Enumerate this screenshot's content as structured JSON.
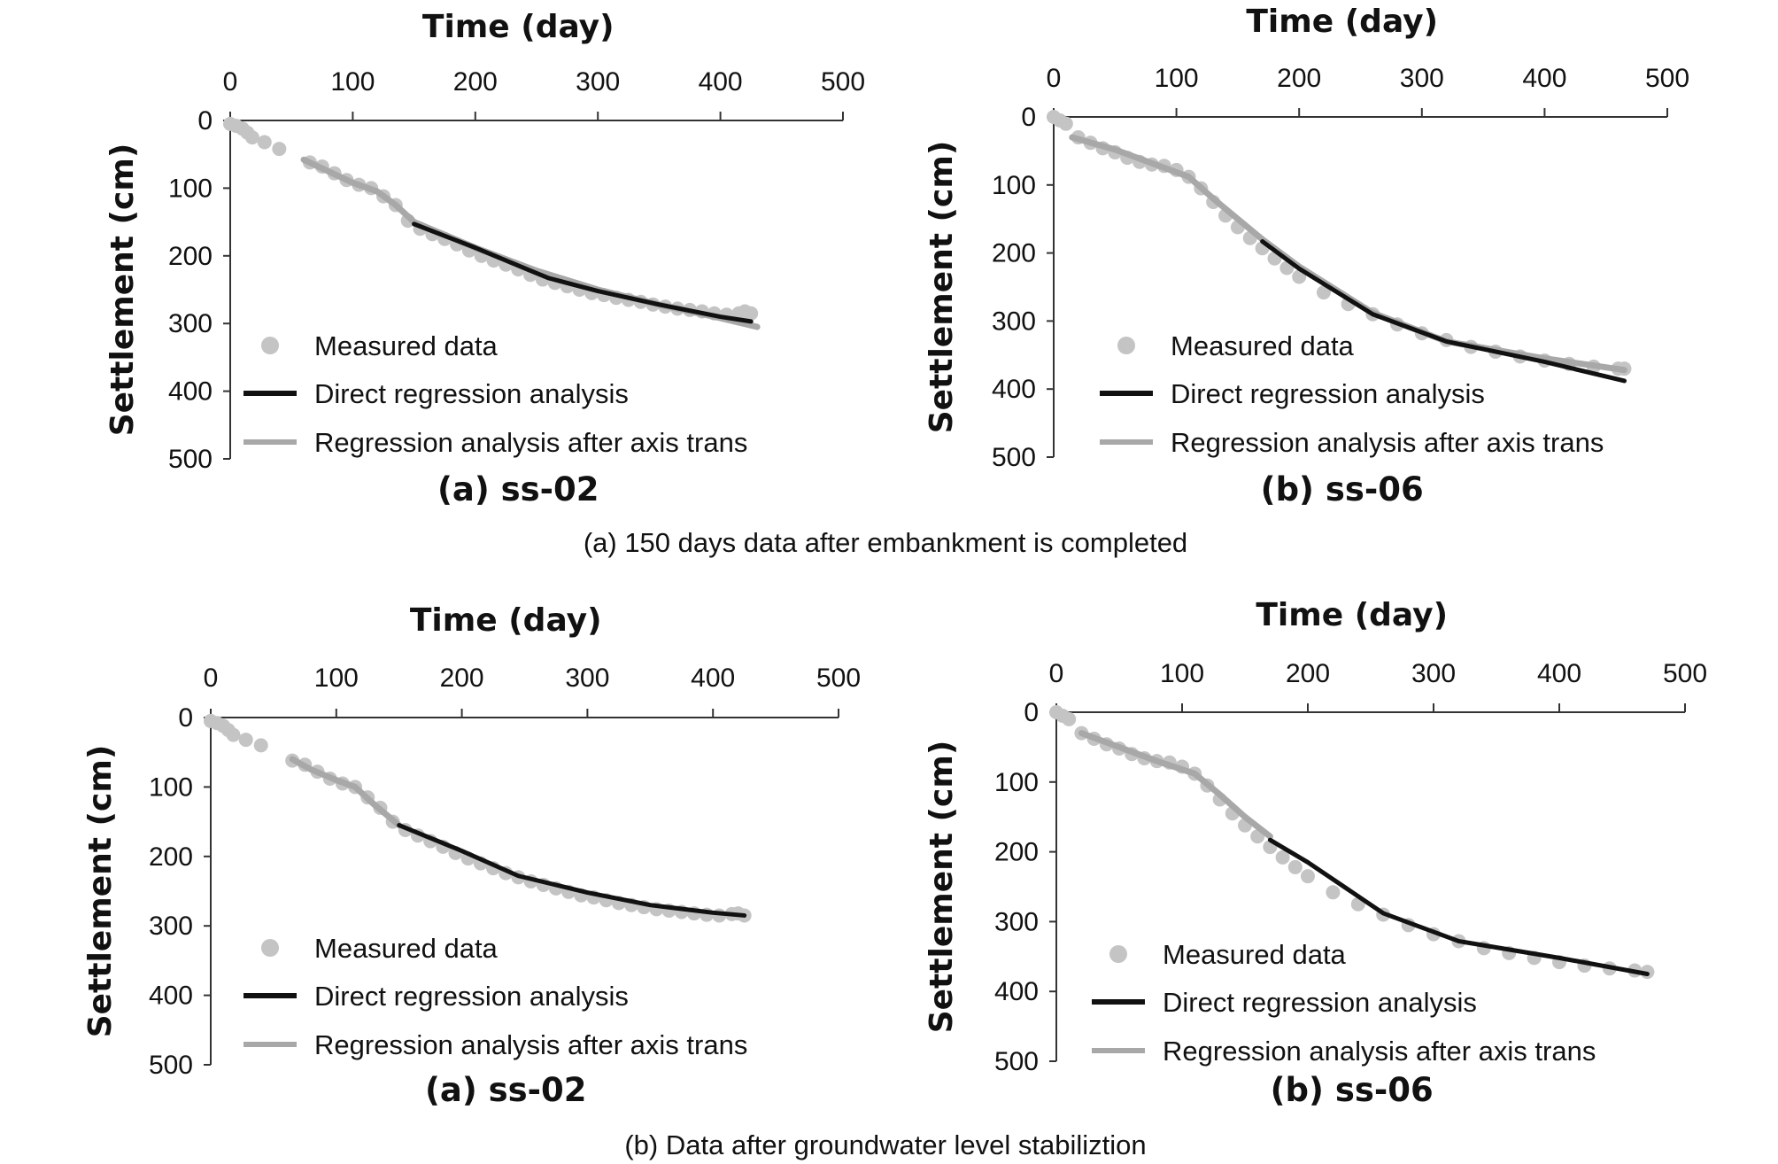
{
  "captions": {
    "top": "(a) 150 days data after embankment is completed",
    "bottom": "(b) Data after groundwater level stabiliztion"
  },
  "legend": {
    "measured": "Measured data",
    "direct": "Direct regression analysis",
    "trans": "Regression analysis after axis trans"
  },
  "colors": {
    "measured": "#c4c4c4",
    "direct": "#111111",
    "trans": "#a8a8a8"
  },
  "chart_data": [
    {
      "type": "scatter",
      "title": "Time (day)",
      "ylabel": "Settlement (cm)",
      "subtitle": "(a) ss-02",
      "xlim": [
        0,
        500
      ],
      "ylim": [
        0,
        500
      ],
      "y_inverted": true,
      "xticks": [
        "0",
        "100",
        "200",
        "300",
        "400",
        "500"
      ],
      "yticks": [
        "0",
        "100",
        "200",
        "300",
        "400",
        "500"
      ],
      "legend_position": "bottom-left",
      "series": [
        {
          "name": "Measured data",
          "kind": "scatter",
          "x": [
            0,
            5,
            10,
            14,
            18,
            28,
            40,
            65,
            75,
            85,
            95,
            105,
            115,
            125,
            135,
            145,
            155,
            165,
            175,
            185,
            195,
            205,
            215,
            225,
            235,
            245,
            255,
            265,
            275,
            285,
            295,
            305,
            315,
            325,
            335,
            345,
            355,
            365,
            375,
            385,
            395,
            405,
            415,
            420,
            425
          ],
          "y": [
            5,
            8,
            12,
            18,
            25,
            32,
            42,
            62,
            68,
            78,
            88,
            95,
            100,
            112,
            125,
            148,
            160,
            168,
            175,
            183,
            192,
            200,
            207,
            213,
            220,
            228,
            235,
            240,
            245,
            250,
            255,
            258,
            262,
            265,
            268,
            272,
            275,
            278,
            280,
            282,
            285,
            287,
            285,
            282,
            285
          ]
        },
        {
          "name": "Regression analysis after axis trans",
          "kind": "line",
          "x": [
            60,
            80,
            100,
            120,
            135,
            150,
            200,
            250,
            300,
            350,
            400,
            430
          ],
          "y": [
            58,
            75,
            92,
            105,
            125,
            150,
            188,
            222,
            250,
            272,
            292,
            305
          ]
        },
        {
          "name": "Direct regression analysis",
          "kind": "line",
          "x": [
            150,
            200,
            245,
            260,
            300,
            350,
            400,
            425
          ],
          "y": [
            153,
            188,
            222,
            233,
            252,
            272,
            290,
            297
          ]
        }
      ]
    },
    {
      "type": "scatter",
      "title": "Time (day)",
      "ylabel": "Settlement (cm)",
      "subtitle": "(b) ss-06",
      "xlim": [
        0,
        500
      ],
      "ylim": [
        0,
        500
      ],
      "y_inverted": true,
      "xticks": [
        "0",
        "100",
        "200",
        "300",
        "400",
        "500"
      ],
      "yticks": [
        "0",
        "100",
        "200",
        "300",
        "400",
        "500"
      ],
      "legend_position": "bottom-left",
      "series": [
        {
          "name": "Measured data",
          "kind": "scatter",
          "x": [
            0,
            5,
            10,
            20,
            30,
            40,
            50,
            60,
            70,
            80,
            90,
            100,
            110,
            120,
            130,
            140,
            150,
            160,
            170,
            180,
            190,
            200,
            220,
            240,
            260,
            280,
            300,
            320,
            340,
            360,
            380,
            400,
            420,
            440,
            460,
            465
          ],
          "y": [
            0,
            5,
            10,
            30,
            38,
            46,
            52,
            60,
            66,
            70,
            72,
            78,
            88,
            105,
            125,
            145,
            162,
            178,
            193,
            208,
            222,
            235,
            258,
            275,
            290,
            305,
            318,
            328,
            338,
            345,
            352,
            358,
            363,
            367,
            370,
            370
          ]
        },
        {
          "name": "Regression analysis after axis trans",
          "kind": "line",
          "x": [
            15,
            50,
            80,
            110,
            130,
            150,
            170,
            200,
            260,
            320,
            400,
            465
          ],
          "y": [
            30,
            48,
            68,
            88,
            120,
            150,
            180,
            220,
            288,
            330,
            355,
            372
          ]
        },
        {
          "name": "Direct regression analysis",
          "kind": "line",
          "x": [
            170,
            200,
            260,
            320,
            400,
            465
          ],
          "y": [
            183,
            223,
            290,
            330,
            360,
            388
          ]
        }
      ]
    },
    {
      "type": "scatter",
      "title": "Time (day)",
      "ylabel": "Settlement (cm)",
      "subtitle": "(a) ss-02",
      "xlim": [
        0,
        500
      ],
      "ylim": [
        0,
        500
      ],
      "y_inverted": true,
      "xticks": [
        "0",
        "100",
        "200",
        "300",
        "400",
        "500"
      ],
      "yticks": [
        "0",
        "100",
        "200",
        "300",
        "400",
        "500"
      ],
      "legend_position": "bottom-left",
      "series": [
        {
          "name": "Measured data",
          "kind": "scatter",
          "x": [
            0,
            5,
            10,
            14,
            18,
            28,
            40,
            65,
            75,
            85,
            95,
            105,
            115,
            125,
            135,
            145,
            155,
            165,
            175,
            185,
            195,
            205,
            215,
            225,
            235,
            245,
            255,
            265,
            275,
            285,
            295,
            305,
            315,
            325,
            335,
            345,
            355,
            365,
            375,
            385,
            395,
            405,
            415,
            420,
            425
          ],
          "y": [
            5,
            8,
            12,
            18,
            25,
            32,
            40,
            62,
            68,
            78,
            88,
            95,
            100,
            115,
            130,
            150,
            162,
            170,
            178,
            186,
            195,
            203,
            210,
            217,
            224,
            230,
            236,
            241,
            246,
            251,
            256,
            259,
            263,
            267,
            270,
            273,
            276,
            278,
            280,
            282,
            284,
            285,
            283,
            282,
            285
          ]
        },
        {
          "name": "Regression analysis after axis trans",
          "kind": "line",
          "x": [
            65,
            80,
            100,
            115,
            130,
            150
          ],
          "y": [
            60,
            75,
            90,
            100,
            125,
            155
          ]
        },
        {
          "name": "Direct regression analysis",
          "kind": "line",
          "x": [
            150,
            200,
            245,
            300,
            350,
            400,
            425
          ],
          "y": [
            155,
            192,
            228,
            252,
            270,
            281,
            285
          ]
        }
      ]
    },
    {
      "type": "scatter",
      "title": "Time (day)",
      "ylabel": "Settlement (cm)",
      "subtitle": "(b) ss-06",
      "xlim": [
        0,
        500
      ],
      "ylim": [
        0,
        500
      ],
      "y_inverted": true,
      "xticks": [
        "0",
        "100",
        "200",
        "300",
        "400",
        "500"
      ],
      "yticks": [
        "0",
        "100",
        "200",
        "300",
        "400",
        "500"
      ],
      "legend_position": "bottom-left",
      "series": [
        {
          "name": "Measured data",
          "kind": "scatter",
          "x": [
            0,
            5,
            10,
            20,
            30,
            40,
            50,
            60,
            70,
            80,
            90,
            100,
            110,
            120,
            130,
            140,
            150,
            160,
            170,
            180,
            190,
            200,
            220,
            240,
            260,
            280,
            300,
            320,
            340,
            360,
            380,
            400,
            420,
            440,
            460,
            470
          ],
          "y": [
            0,
            5,
            10,
            30,
            38,
            46,
            52,
            60,
            66,
            70,
            72,
            78,
            88,
            105,
            125,
            145,
            162,
            178,
            193,
            208,
            222,
            235,
            258,
            275,
            290,
            305,
            318,
            328,
            338,
            345,
            352,
            358,
            363,
            367,
            370,
            372
          ]
        },
        {
          "name": "Regression analysis after axis trans",
          "kind": "line",
          "x": [
            20,
            50,
            80,
            110,
            130,
            150,
            170
          ],
          "y": [
            30,
            50,
            70,
            88,
            118,
            150,
            178
          ]
        },
        {
          "name": "Direct regression analysis",
          "kind": "line",
          "x": [
            170,
            200,
            260,
            320,
            400,
            470
          ],
          "y": [
            183,
            215,
            288,
            328,
            352,
            375
          ]
        }
      ]
    }
  ]
}
